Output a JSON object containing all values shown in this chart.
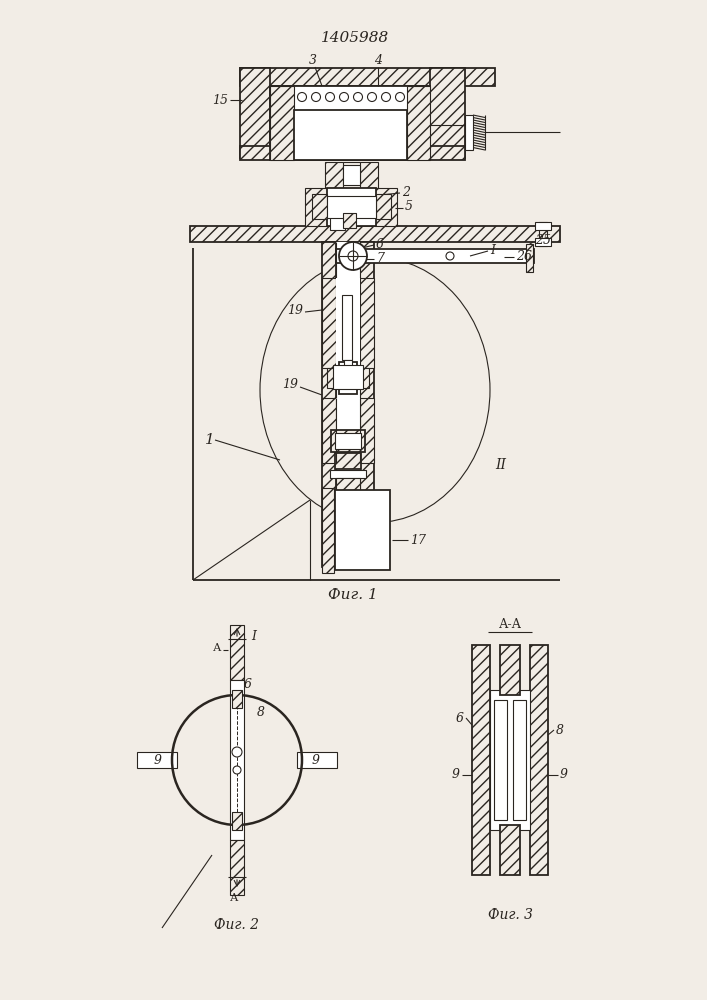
{
  "bg_color": "#f2ede6",
  "line_color": "#2a2520",
  "patent_number": "1405988",
  "fig1_caption": "Фиг. 1",
  "fig2_caption": "Фиг. 2",
  "fig3_caption": "Фиг. 3",
  "fig3_header": "А-А"
}
